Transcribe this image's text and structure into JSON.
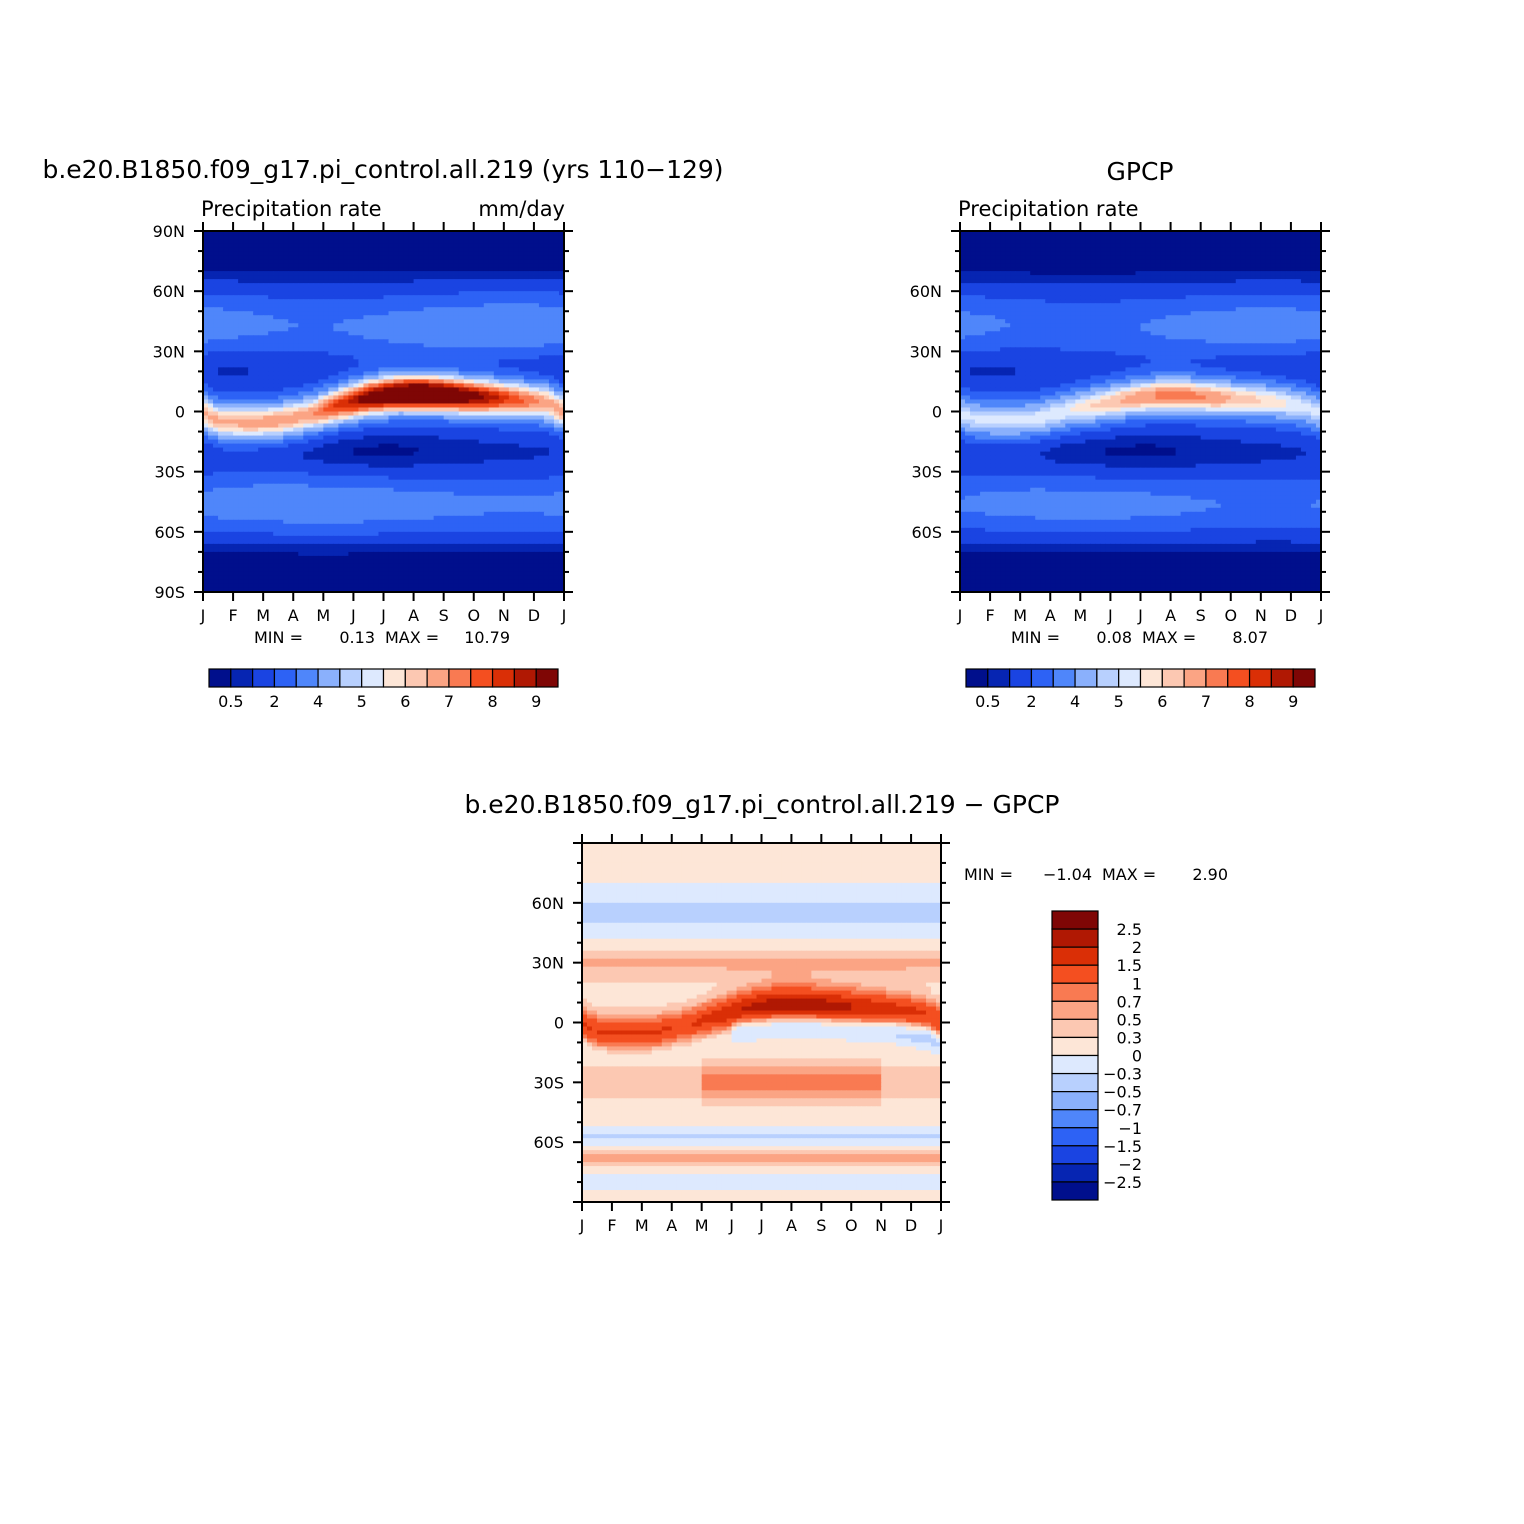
{
  "figure": {
    "type": "latitude-time zonal mean contour plots"
  },
  "colors": {
    "abs_palette": [
      "#000f8c",
      "#0625b2",
      "#1a44e2",
      "#2d62f5",
      "#4f86fa",
      "#8ab0fc",
      "#b8d0fe",
      "#dde9fe",
      "#fde6d7",
      "#fcc8b2",
      "#fba484",
      "#f97a52",
      "#f44f20",
      "#da2f06",
      "#b01803",
      "#7f0605"
    ],
    "diff_palette": [
      "#000f8c",
      "#0625b2",
      "#1a44e2",
      "#2d62f5",
      "#4f86fa",
      "#8ab0fc",
      "#b8d0fe",
      "#dde9fe",
      "#fde6d7",
      "#fcc8b2",
      "#fba484",
      "#f97a52",
      "#f44f20",
      "#da2f06",
      "#b01803",
      "#7f0605"
    ]
  },
  "chart_data": [
    {
      "id": "model",
      "type": "heatmap",
      "title": "b.e20.B1850.f09_g17.pi_control.all.219 (yrs 110−129)",
      "left_string": "Precipitation  rate",
      "right_string": "mm/day",
      "x_tick_labels": [
        "J",
        "F",
        "M",
        "A",
        "M",
        "J",
        "J",
        "A",
        "S",
        "O",
        "N",
        "D",
        "J"
      ],
      "y_tick_labels": [
        "90N",
        "60N",
        "30N",
        "0",
        "30S",
        "60S",
        "90S"
      ],
      "ylim": [
        -90,
        90
      ],
      "min_label": "MIN =",
      "min_value": "0.13",
      "max_label": "MAX =",
      "max_value": "10.79",
      "min": 0.13,
      "max": 10.79,
      "itcz_lat_by_month": [
        -5,
        -6,
        -5,
        -2,
        3,
        7,
        9,
        9,
        8,
        7,
        6,
        4
      ],
      "itcz_peak_by_month": [
        6.8,
        7.0,
        7.1,
        7.0,
        8.3,
        9.6,
        10.6,
        10.8,
        10.1,
        9.0,
        7.8,
        6.9
      ],
      "colorbar_labels": [
        "0.5",
        "2",
        "4",
        "5",
        "6",
        "7",
        "8",
        "9"
      ]
    },
    {
      "id": "obs",
      "type": "heatmap",
      "title": "GPCP",
      "left_string": "Precipitation  rate",
      "x_tick_labels": [
        "J",
        "F",
        "M",
        "A",
        "M",
        "J",
        "J",
        "A",
        "S",
        "O",
        "N",
        "D",
        "J"
      ],
      "y_tick_labels": [
        "60N",
        "30N",
        "0",
        "30S",
        "60S"
      ],
      "ylim": [
        -90,
        90
      ],
      "min_label": "MIN =",
      "min_value": "0.08",
      "max_label": "MAX =",
      "max_value": "8.07",
      "min": 0.08,
      "max": 8.07,
      "itcz_lat_by_month": [
        -4,
        -5,
        -4,
        0,
        3,
        6,
        8,
        8,
        7,
        6,
        5,
        2
      ],
      "itcz_peak_by_month": [
        5.8,
        5.9,
        6.0,
        6.1,
        6.8,
        7.4,
        7.9,
        8.07,
        7.7,
        7.0,
        6.4,
        5.9
      ],
      "colorbar_labels": [
        "0.5",
        "2",
        "4",
        "5",
        "6",
        "7",
        "8",
        "9"
      ]
    },
    {
      "id": "diff",
      "type": "heatmap",
      "title": "b.e20.B1850.f09_g17.pi_control.all.219  −  GPCP",
      "x_tick_labels": [
        "J",
        "F",
        "M",
        "A",
        "M",
        "J",
        "J",
        "A",
        "S",
        "O",
        "N",
        "D",
        "J"
      ],
      "y_tick_labels": [
        "60N",
        "30N",
        "0",
        "30S",
        "60S"
      ],
      "ylim": [
        -90,
        90
      ],
      "min_label": "MIN =",
      "min_value": "−1.04",
      "max_label": "MAX =",
      "max_value": "2.90",
      "min": -1.04,
      "max": 2.9,
      "colorbar_labels": [
        "2.5",
        "2",
        "1.5",
        "1",
        "0.7",
        "0.5",
        "0.3",
        "0",
        "−0.3",
        "−0.5",
        "−0.7",
        "−1",
        "−1.5",
        "−2",
        "−2.5"
      ]
    }
  ]
}
